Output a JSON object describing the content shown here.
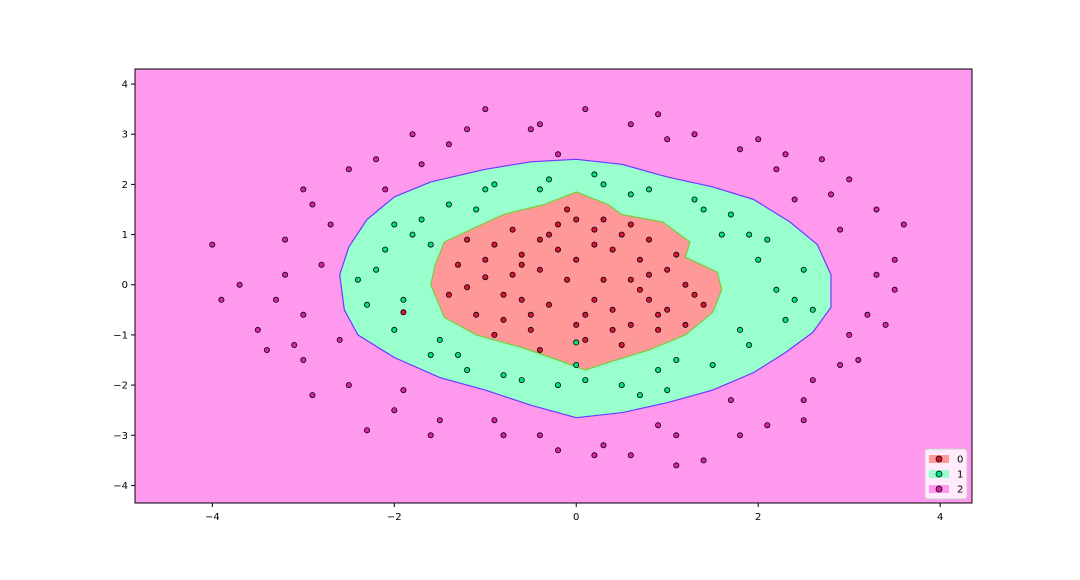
{
  "chart_data": {
    "type": "scatter",
    "title": "",
    "xlabel": "",
    "ylabel": "",
    "xlim": [
      -4.85,
      4.35
    ],
    "ylim": [
      -4.35,
      4.3
    ],
    "xticks": [
      -4,
      -2,
      0,
      2,
      4
    ],
    "yticks": [
      -4,
      -3,
      -2,
      -1,
      0,
      1,
      2,
      3,
      4
    ],
    "grid": false,
    "legend_position": "lower-right",
    "background_color": "#FF99EE",
    "regions": [
      {
        "class": "1",
        "fill": "#99FFCC",
        "edge": "#6A3AFF",
        "boundary": [
          [
            -2.6,
            0.2
          ],
          [
            -2.55,
            -0.5
          ],
          [
            -2.4,
            -1.0
          ],
          [
            -2.0,
            -1.45
          ],
          [
            -1.5,
            -1.85
          ],
          [
            -1.0,
            -2.1
          ],
          [
            -0.5,
            -2.4
          ],
          [
            0.0,
            -2.65
          ],
          [
            0.5,
            -2.55
          ],
          [
            1.0,
            -2.35
          ],
          [
            1.5,
            -2.1
          ],
          [
            1.95,
            -1.75
          ],
          [
            2.3,
            -1.35
          ],
          [
            2.6,
            -0.95
          ],
          [
            2.8,
            -0.45
          ],
          [
            2.8,
            0.2
          ],
          [
            2.65,
            0.8
          ],
          [
            2.35,
            1.25
          ],
          [
            1.95,
            1.7
          ],
          [
            1.5,
            1.95
          ],
          [
            1.0,
            2.15
          ],
          [
            0.5,
            2.4
          ],
          [
            0.0,
            2.5
          ],
          [
            -0.5,
            2.45
          ],
          [
            -1.0,
            2.3
          ],
          [
            -1.6,
            2.05
          ],
          [
            -2.0,
            1.75
          ],
          [
            -2.3,
            1.3
          ],
          [
            -2.5,
            0.75
          ]
        ]
      },
      {
        "class": "0",
        "fill": "#FF9999",
        "edge": "#7ACC3A",
        "boundary": [
          [
            -1.6,
            0.0
          ],
          [
            -1.45,
            -0.65
          ],
          [
            -1.1,
            -1.0
          ],
          [
            -0.6,
            -1.25
          ],
          [
            -0.2,
            -1.5
          ],
          [
            0.1,
            -1.7
          ],
          [
            0.35,
            -1.55
          ],
          [
            0.8,
            -1.3
          ],
          [
            1.2,
            -1.0
          ],
          [
            1.5,
            -0.55
          ],
          [
            1.6,
            -0.1
          ],
          [
            1.55,
            0.25
          ],
          [
            1.2,
            0.55
          ],
          [
            1.25,
            0.85
          ],
          [
            0.95,
            1.25
          ],
          [
            0.5,
            1.4
          ],
          [
            0.35,
            1.6
          ],
          [
            0.0,
            1.85
          ],
          [
            -0.35,
            1.6
          ],
          [
            -0.8,
            1.4
          ],
          [
            -1.1,
            1.15
          ],
          [
            -1.45,
            0.85
          ],
          [
            -1.55,
            0.4
          ]
        ]
      }
    ],
    "series": [
      {
        "name": "0",
        "color": "#DC143C",
        "points": [
          [
            -1.2,
            -0.05
          ],
          [
            -1.0,
            0.15
          ],
          [
            -0.8,
            -0.2
          ],
          [
            -0.6,
            0.4
          ],
          [
            -0.4,
            0.9
          ],
          [
            -0.2,
            1.2
          ],
          [
            0.0,
            0.5
          ],
          [
            0.2,
            -0.3
          ],
          [
            0.4,
            0.7
          ],
          [
            0.6,
            -0.8
          ],
          [
            0.8,
            0.2
          ],
          [
            1.0,
            -0.5
          ],
          [
            1.2,
            0.0
          ],
          [
            0.5,
            1.0
          ],
          [
            -0.5,
            -0.9
          ],
          [
            -0.9,
            0.8
          ],
          [
            0.1,
            -1.1
          ],
          [
            -0.3,
            -0.4
          ],
          [
            0.7,
            0.5
          ],
          [
            -1.1,
            -0.6
          ],
          [
            1.3,
            -0.2
          ],
          [
            -0.7,
            1.1
          ],
          [
            0.3,
            1.3
          ],
          [
            -0.1,
            0.1
          ],
          [
            0.9,
            -0.9
          ],
          [
            -0.4,
            -1.3
          ],
          [
            1.1,
            0.6
          ],
          [
            -1.3,
            0.4
          ],
          [
            0.0,
            -0.8
          ],
          [
            0.6,
            1.2
          ],
          [
            -0.8,
            -0.7
          ],
          [
            -0.2,
            0.7
          ],
          [
            0.4,
            -0.5
          ],
          [
            0.8,
            0.9
          ],
          [
            -0.6,
            -0.3
          ],
          [
            1.4,
            -0.4
          ],
          [
            -0.1,
            1.5
          ],
          [
            0.2,
            0.8
          ],
          [
            -1.0,
            0.5
          ],
          [
            0.5,
            -1.2
          ],
          [
            -1.9,
            -0.55
          ],
          [
            -0.4,
            0.3
          ],
          [
            0.7,
            -0.1
          ],
          [
            -0.9,
            -1.0
          ],
          [
            0.3,
            0.1
          ],
          [
            1.0,
            0.3
          ],
          [
            -0.3,
            1.0
          ],
          [
            0.1,
            -0.6
          ],
          [
            -0.6,
            0.6
          ],
          [
            0.9,
            -0.6
          ],
          [
            -1.2,
            0.9
          ],
          [
            0.6,
            0.1
          ],
          [
            -0.5,
            -0.6
          ],
          [
            0.2,
            1.1
          ],
          [
            1.2,
            -0.8
          ],
          [
            -0.7,
            0.2
          ],
          [
            0.0,
            1.3
          ],
          [
            0.4,
            -0.9
          ],
          [
            -1.4,
            -0.2
          ],
          [
            0.8,
            -0.3
          ]
        ]
      },
      {
        "name": "1",
        "color": "#00E28A",
        "points": [
          [
            -2.2,
            0.3
          ],
          [
            -2.0,
            -0.9
          ],
          [
            -1.8,
            1.0
          ],
          [
            -1.6,
            -1.4
          ],
          [
            -1.4,
            1.6
          ],
          [
            -1.2,
            -1.7
          ],
          [
            -1.0,
            1.9
          ],
          [
            -0.6,
            -1.9
          ],
          [
            -0.3,
            2.1
          ],
          [
            0.0,
            -1.6
          ],
          [
            0.2,
            2.2
          ],
          [
            0.5,
            -2.0
          ],
          [
            0.8,
            1.9
          ],
          [
            1.0,
            -2.1
          ],
          [
            1.3,
            1.7
          ],
          [
            1.5,
            -1.6
          ],
          [
            1.7,
            1.4
          ],
          [
            1.9,
            -1.2
          ],
          [
            2.1,
            0.9
          ],
          [
            2.3,
            -0.7
          ],
          [
            2.5,
            0.3
          ],
          [
            2.4,
            -0.3
          ],
          [
            -2.3,
            -0.4
          ],
          [
            -2.1,
            0.7
          ],
          [
            -1.9,
            -0.3
          ],
          [
            -1.7,
            1.3
          ],
          [
            -1.5,
            -1.1
          ],
          [
            -1.1,
            1.5
          ],
          [
            -0.8,
            -1.8
          ],
          [
            -0.4,
            1.9
          ],
          [
            0.1,
            -1.9
          ],
          [
            0.6,
            1.8
          ],
          [
            0.9,
            -1.7
          ],
          [
            1.4,
            1.5
          ],
          [
            1.8,
            -0.9
          ],
          [
            2.0,
            0.5
          ],
          [
            2.2,
            -0.1
          ],
          [
            -2.4,
            0.1
          ],
          [
            -1.3,
            -1.4
          ],
          [
            1.1,
            -1.5
          ],
          [
            0.3,
            2.0
          ],
          [
            -0.9,
            2.0
          ],
          [
            1.6,
            1.0
          ],
          [
            -1.6,
            0.8
          ],
          [
            2.6,
            -0.5
          ],
          [
            0.0,
            -1.15
          ],
          [
            1.9,
            1.0
          ],
          [
            -2.0,
            1.2
          ],
          [
            0.7,
            -2.2
          ],
          [
            -0.2,
            -2.0
          ]
        ]
      },
      {
        "name": "2",
        "color": "#DD22AA",
        "points": [
          [
            -3.9,
            -0.3
          ],
          [
            -4.0,
            0.8
          ],
          [
            -3.5,
            -0.9
          ],
          [
            -3.2,
            0.9
          ],
          [
            -3.0,
            -1.5
          ],
          [
            -2.9,
            1.6
          ],
          [
            -2.5,
            -2.0
          ],
          [
            -2.2,
            2.5
          ],
          [
            -2.0,
            -2.5
          ],
          [
            -1.8,
            3.0
          ],
          [
            -1.5,
            -2.7
          ],
          [
            -1.2,
            3.1
          ],
          [
            -1.0,
            3.5
          ],
          [
            -0.8,
            -3.0
          ],
          [
            -0.5,
            3.1
          ],
          [
            -0.2,
            -3.3
          ],
          [
            0.1,
            3.5
          ],
          [
            0.3,
            -3.2
          ],
          [
            0.6,
            3.2
          ],
          [
            0.9,
            3.4
          ],
          [
            1.1,
            -3.0
          ],
          [
            1.3,
            3.0
          ],
          [
            1.4,
            -3.5
          ],
          [
            1.8,
            2.7
          ],
          [
            2.1,
            -2.8
          ],
          [
            2.3,
            2.6
          ],
          [
            2.5,
            -2.3
          ],
          [
            2.7,
            2.5
          ],
          [
            2.9,
            -1.6
          ],
          [
            3.0,
            2.1
          ],
          [
            3.1,
            -1.5
          ],
          [
            3.3,
            1.5
          ],
          [
            3.4,
            -0.8
          ],
          [
            3.5,
            0.5
          ],
          [
            3.6,
            1.2
          ],
          [
            3.5,
            -0.1
          ],
          [
            -3.7,
            0.0
          ],
          [
            -3.4,
            -1.3
          ],
          [
            -3.0,
            -0.6
          ],
          [
            -2.8,
            0.4
          ],
          [
            -2.7,
            1.2
          ],
          [
            -2.6,
            -1.1
          ],
          [
            -3.2,
            0.2
          ],
          [
            -2.3,
            -2.9
          ],
          [
            -1.6,
            -3.0
          ],
          [
            -0.9,
            -2.7
          ],
          [
            0.2,
            -3.4
          ],
          [
            0.9,
            -2.8
          ],
          [
            1.7,
            -2.3
          ],
          [
            2.6,
            -1.9
          ],
          [
            3.0,
            -1.0
          ],
          [
            2.8,
            1.8
          ],
          [
            2.0,
            2.9
          ],
          [
            1.0,
            2.9
          ],
          [
            -0.4,
            3.2
          ],
          [
            -1.4,
            2.8
          ],
          [
            -2.5,
            2.3
          ],
          [
            -3.0,
            1.9
          ],
          [
            -3.3,
            -0.3
          ],
          [
            -2.9,
            -2.2
          ],
          [
            -1.9,
            -2.1
          ],
          [
            -0.4,
            -3.0
          ],
          [
            0.6,
            -3.4
          ],
          [
            1.8,
            -3.0
          ],
          [
            2.5,
            -2.7
          ],
          [
            3.2,
            -0.6
          ],
          [
            2.9,
            1.1
          ],
          [
            2.2,
            2.3
          ],
          [
            -0.2,
            2.6
          ],
          [
            -1.7,
            2.4
          ],
          [
            1.1,
            -3.6
          ],
          [
            -2.1,
            1.9
          ],
          [
            2.4,
            1.7
          ],
          [
            -3.1,
            -1.2
          ],
          [
            3.3,
            0.2
          ]
        ]
      }
    ]
  }
}
